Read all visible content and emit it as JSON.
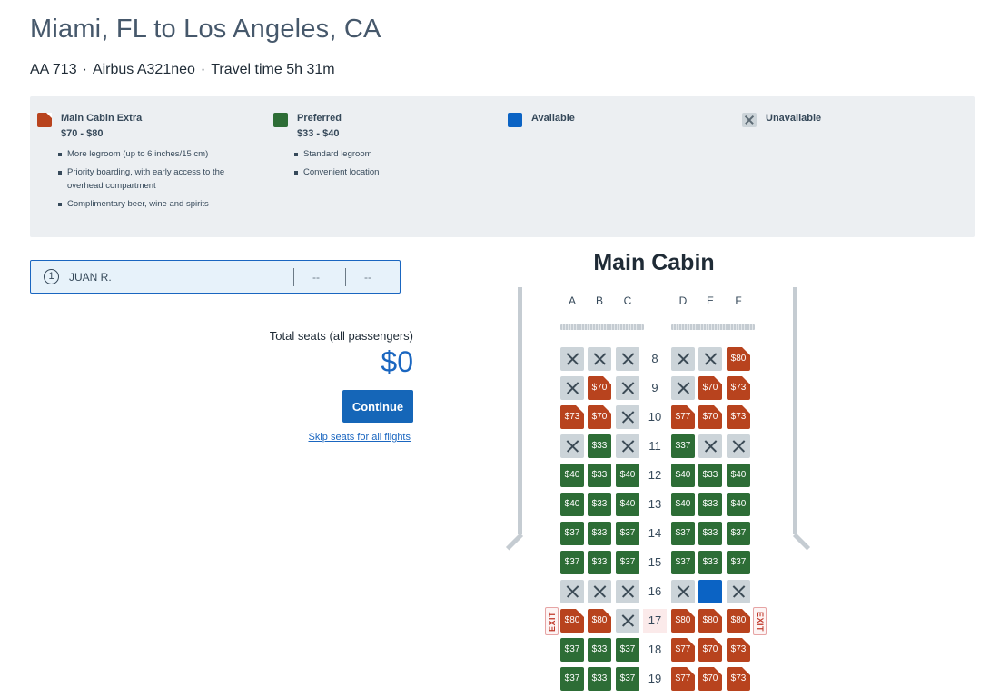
{
  "header": {
    "title": "Miami, FL to Los Angeles, CA",
    "flight": "AA 713",
    "aircraft": "Airbus A321neo",
    "travel_time": "Travel time 5h 31m",
    "separator": "·"
  },
  "legend": {
    "main_cabin_extra": {
      "name": "Main Cabin Extra",
      "price": "$70 - $80",
      "features": [
        "More legroom (up to 6 inches/15 cm)",
        "Priority boarding, with early access to the overhead compartment",
        "Complimentary beer, wine and spirits"
      ]
    },
    "preferred": {
      "name": "Preferred",
      "price": "$33 - $40",
      "features": [
        "Standard legroom",
        "Convenient location"
      ]
    },
    "available": {
      "name": "Available"
    },
    "unavailable": {
      "name": "Unavailable"
    }
  },
  "passenger": {
    "number": "1",
    "name": "JUAN R.",
    "seat1": "--",
    "seat2": "--"
  },
  "summary": {
    "total_label": "Total seats (all passengers)",
    "total_amount": "$0",
    "continue_label": "Continue",
    "skip_label": "Skip seats for all flights"
  },
  "cabin": {
    "title": "Main Cabin",
    "columns": [
      "A",
      "B",
      "C",
      "D",
      "E",
      "F"
    ],
    "exit_label": "EXIT",
    "rows": [
      {
        "num": "8",
        "seats": [
          [
            "unav",
            ""
          ],
          [
            "unav",
            ""
          ],
          [
            "unav",
            ""
          ],
          [
            "unav",
            ""
          ],
          [
            "unav",
            ""
          ],
          [
            "mce",
            "$80"
          ]
        ]
      },
      {
        "num": "9",
        "seats": [
          [
            "unav",
            ""
          ],
          [
            "mce",
            "$70"
          ],
          [
            "unav",
            ""
          ],
          [
            "unav",
            ""
          ],
          [
            "mce",
            "$70"
          ],
          [
            "mce",
            "$73"
          ]
        ]
      },
      {
        "num": "10",
        "seats": [
          [
            "mce",
            "$73"
          ],
          [
            "mce",
            "$70"
          ],
          [
            "unav",
            ""
          ],
          [
            "mce",
            "$77"
          ],
          [
            "mce",
            "$70"
          ],
          [
            "mce",
            "$73"
          ]
        ]
      },
      {
        "num": "11",
        "seats": [
          [
            "unav",
            ""
          ],
          [
            "pref",
            "$33"
          ],
          [
            "unav",
            ""
          ],
          [
            "pref",
            "$37"
          ],
          [
            "unav",
            ""
          ],
          [
            "unav",
            ""
          ]
        ]
      },
      {
        "num": "12",
        "seats": [
          [
            "pref",
            "$40"
          ],
          [
            "pref",
            "$33"
          ],
          [
            "pref",
            "$40"
          ],
          [
            "pref",
            "$40"
          ],
          [
            "pref",
            "$33"
          ],
          [
            "pref",
            "$40"
          ]
        ]
      },
      {
        "num": "13",
        "seats": [
          [
            "pref",
            "$40"
          ],
          [
            "pref",
            "$33"
          ],
          [
            "pref",
            "$40"
          ],
          [
            "pref",
            "$40"
          ],
          [
            "pref",
            "$33"
          ],
          [
            "pref",
            "$40"
          ]
        ]
      },
      {
        "num": "14",
        "seats": [
          [
            "pref",
            "$37"
          ],
          [
            "pref",
            "$33"
          ],
          [
            "pref",
            "$37"
          ],
          [
            "pref",
            "$37"
          ],
          [
            "pref",
            "$33"
          ],
          [
            "pref",
            "$37"
          ]
        ]
      },
      {
        "num": "15",
        "seats": [
          [
            "pref",
            "$37"
          ],
          [
            "pref",
            "$33"
          ],
          [
            "pref",
            "$37"
          ],
          [
            "pref",
            "$37"
          ],
          [
            "pref",
            "$33"
          ],
          [
            "pref",
            "$37"
          ]
        ]
      },
      {
        "num": "16",
        "seats": [
          [
            "unav",
            ""
          ],
          [
            "unav",
            ""
          ],
          [
            "unav",
            ""
          ],
          [
            "unav",
            ""
          ],
          [
            "avail",
            ""
          ],
          [
            "unav",
            ""
          ]
        ]
      },
      {
        "num": "17",
        "exit": true,
        "seats": [
          [
            "mce",
            "$80"
          ],
          [
            "mce",
            "$80"
          ],
          [
            "unav",
            ""
          ],
          [
            "mce",
            "$80"
          ],
          [
            "mce",
            "$80"
          ],
          [
            "mce",
            "$80"
          ]
        ]
      },
      {
        "num": "18",
        "seats": [
          [
            "pref",
            "$37"
          ],
          [
            "pref",
            "$33"
          ],
          [
            "pref",
            "$37"
          ],
          [
            "mce",
            "$77"
          ],
          [
            "mce",
            "$70"
          ],
          [
            "mce",
            "$73"
          ]
        ]
      },
      {
        "num": "19",
        "seats": [
          [
            "pref",
            "$37"
          ],
          [
            "pref",
            "$33"
          ],
          [
            "pref",
            "$37"
          ],
          [
            "mce",
            "$77"
          ],
          [
            "mce",
            "$70"
          ],
          [
            "mce",
            "$73"
          ]
        ]
      }
    ]
  },
  "colors": {
    "main_cabin_extra": "#b8431e",
    "preferred": "#2d6d36",
    "available": "#0b63c4",
    "unavailable": "#ccd4d9",
    "accent": "#1566b8"
  }
}
